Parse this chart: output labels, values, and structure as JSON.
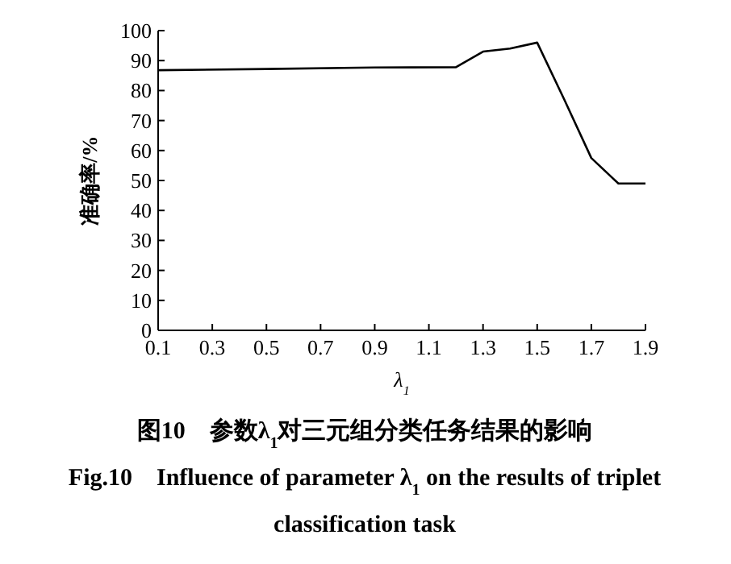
{
  "chart_data": {
    "type": "line",
    "title": "图10　参数λ$_{1}$对三元组分类任务结果的影响",
    "subtitle": "Fig.10　Influence of parameter λ$_{1}$ on the results of triplet classification task",
    "xlabel": "λ$_{1}$",
    "ylabel": "准确率/%",
    "x": [
      0.1,
      0.5,
      0.9,
      1.2,
      1.3,
      1.4,
      1.5,
      1.6,
      1.7,
      1.8,
      1.9
    ],
    "series": [
      {
        "color": "#000000",
        "values": [
          86.8,
          87.2,
          87.7,
          87.8,
          93,
          94,
          96,
          77,
          57.5,
          49,
          49
        ]
      }
    ],
    "xlim": [
      0.1,
      1.9
    ],
    "xticks": [
      0.1,
      0.3,
      0.5,
      0.7,
      0.9,
      1.1,
      1.3,
      1.5,
      1.7,
      1.9
    ],
    "ylim": [
      0,
      100
    ],
    "yticks": [
      0,
      10,
      20,
      30,
      40,
      50,
      60,
      70,
      80,
      90,
      100
    ],
    "marker": "none",
    "line_style": "solid",
    "grid": false
  }
}
